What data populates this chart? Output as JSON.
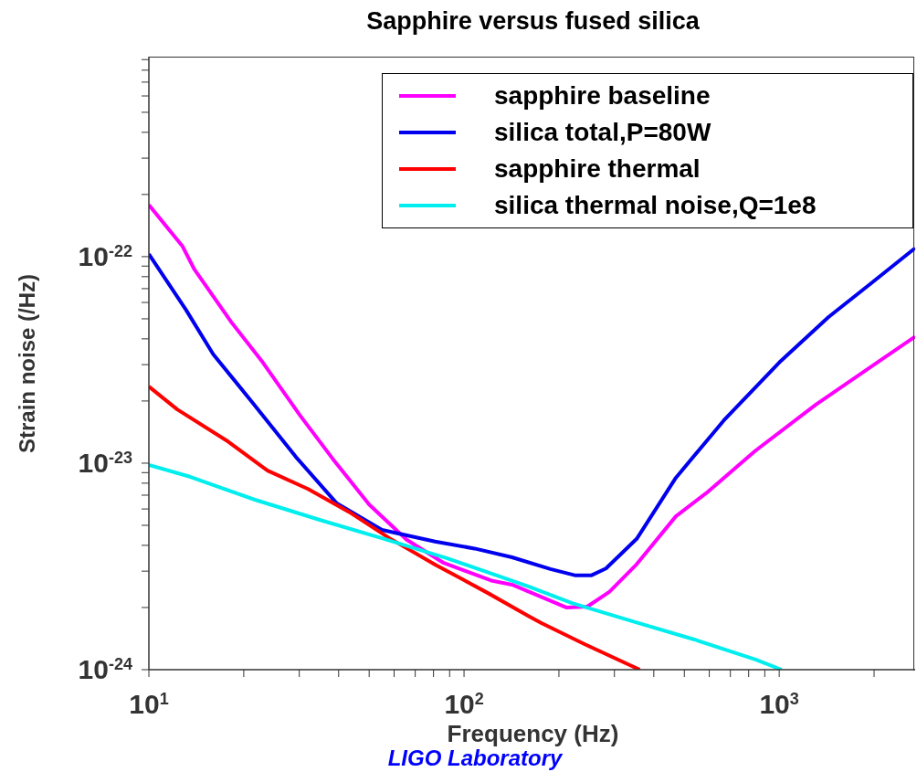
{
  "chart_data": {
    "type": "line",
    "title": "Sapphire versus fused silica",
    "xlabel": "Frequency (Hz)",
    "ylabel": "Strain noise (/Hz)",
    "annotations": [
      "LIGO Laboratory"
    ],
    "log": "xy",
    "grid": false,
    "legend": "top right",
    "marker": "none",
    "line_style": "solid",
    "xlim": [
      10,
      2700
    ],
    "ylim": [
      1e-24,
      9.3e-22
    ],
    "xticks": [
      {
        "value": 10,
        "label": "10$^{1}$"
      },
      {
        "value": 20,
        "label": null
      },
      {
        "value": 30,
        "label": null
      },
      {
        "value": 40,
        "label": null
      },
      {
        "value": 50,
        "label": null
      },
      {
        "value": 60,
        "label": null
      },
      {
        "value": 70,
        "label": null
      },
      {
        "value": 80,
        "label": null
      },
      {
        "value": 90,
        "label": null
      },
      {
        "value": 100,
        "label": "10$^{2}$"
      },
      {
        "value": 200,
        "label": null
      },
      {
        "value": 300,
        "label": null
      },
      {
        "value": 400,
        "label": null
      },
      {
        "value": 500,
        "label": null
      },
      {
        "value": 600,
        "label": null
      },
      {
        "value": 700,
        "label": null
      },
      {
        "value": 800,
        "label": null
      },
      {
        "value": 900,
        "label": null
      },
      {
        "value": 1000,
        "label": "10$^{3}$"
      },
      {
        "value": 2000,
        "label": null
      }
    ],
    "yticks": [
      {
        "value": 1e-24,
        "label": "10$^{-24}$"
      },
      {
        "value": 2e-24,
        "label": null
      },
      {
        "value": 3e-24,
        "label": null
      },
      {
        "value": 4e-24,
        "label": null
      },
      {
        "value": 5e-24,
        "label": null
      },
      {
        "value": 6e-24,
        "label": null
      },
      {
        "value": 7e-24,
        "label": null
      },
      {
        "value": 8e-24,
        "label": null
      },
      {
        "value": 9e-24,
        "label": null
      },
      {
        "value": 1e-23,
        "label": "10$^{-23}$"
      },
      {
        "value": 2e-23,
        "label": null
      },
      {
        "value": 3e-23,
        "label": null
      },
      {
        "value": 4e-23,
        "label": null
      },
      {
        "value": 5e-23,
        "label": null
      },
      {
        "value": 6e-23,
        "label": null
      },
      {
        "value": 7e-23,
        "label": null
      },
      {
        "value": 8e-23,
        "label": null
      },
      {
        "value": 9e-23,
        "label": null
      },
      {
        "value": 1e-22,
        "label": "10$^{-22}$"
      },
      {
        "value": 2e-22,
        "label": null
      },
      {
        "value": 3e-22,
        "label": null
      },
      {
        "value": 4e-22,
        "label": null
      },
      {
        "value": 5e-22,
        "label": null
      },
      {
        "value": 6e-22,
        "label": null
      },
      {
        "value": 7e-22,
        "label": null
      },
      {
        "value": 8e-22,
        "label": null
      },
      {
        "value": 9e-22,
        "label": null
      }
    ],
    "series": [
      {
        "name": "sapphire baseline",
        "color": "#ff00ff",
        "x": [
          10,
          12.8,
          13.9,
          18.2,
          23,
          30.2,
          38.3,
          50,
          65.6,
          85.8,
          122,
          142,
          211,
          246,
          289,
          353,
          470,
          586,
          841,
          1307,
          2044,
          2700
        ],
        "values": [
          1.78e-22,
          1.12e-22,
          8.75e-23,
          4.85e-23,
          3.07e-23,
          1.7e-23,
          1.05e-23,
          6.3e-24,
          4.27e-24,
          3.3e-24,
          2.7e-24,
          2.58e-24,
          2e-24,
          2.02e-24,
          2.38e-24,
          3.24e-24,
          5.53e-24,
          7.15e-24,
          1.15e-23,
          1.92e-23,
          3.07e-23,
          4.1e-23
        ]
      },
      {
        "name": "silica total,P=80W",
        "color": "#0000ee",
        "x": [
          10,
          13.1,
          16,
          21.7,
          29.3,
          39.5,
          54.9,
          80.9,
          108,
          142,
          188,
          226,
          253,
          282,
          353,
          470,
          667,
          1000,
          1434,
          1950,
          2700
        ],
        "values": [
          1.03e-22,
          5.54e-23,
          3.37e-23,
          1.9e-23,
          1.07e-23,
          6.38e-24,
          4.75e-24,
          4.17e-24,
          3.86e-24,
          3.5e-24,
          3.07e-24,
          2.86e-24,
          2.86e-24,
          3.09e-24,
          4.3e-24,
          8.5e-24,
          1.61e-23,
          3.07e-23,
          5.1e-23,
          7.4e-23,
          1.1e-22
        ]
      },
      {
        "name": "sapphire thermal",
        "color": "#ff0000",
        "x": [
          10,
          12.3,
          17.6,
          23.8,
          32,
          43.2,
          58,
          80.9,
          119,
          160,
          176,
          241,
          361
        ],
        "values": [
          2.35e-23,
          1.82e-23,
          1.29e-23,
          9.2e-24,
          7.5e-24,
          5.8e-24,
          4.33e-24,
          3.23e-24,
          2.35e-24,
          1.82e-24,
          1.68e-24,
          1.33e-24,
          1e-24
        ]
      },
      {
        "name": "silica thermal noise,Q=1e8",
        "color": "#00eeee",
        "x": [
          10,
          13.5,
          21.7,
          35,
          54.9,
          88,
          160,
          220,
          345,
          538,
          841,
          1018
        ],
        "values": [
          9.8e-24,
          8.6e-24,
          6.65e-24,
          5.3e-24,
          4.33e-24,
          3.47e-24,
          2.53e-24,
          2.1e-24,
          1.71e-24,
          1.4e-24,
          1.12e-24,
          1e-24
        ]
      }
    ]
  }
}
